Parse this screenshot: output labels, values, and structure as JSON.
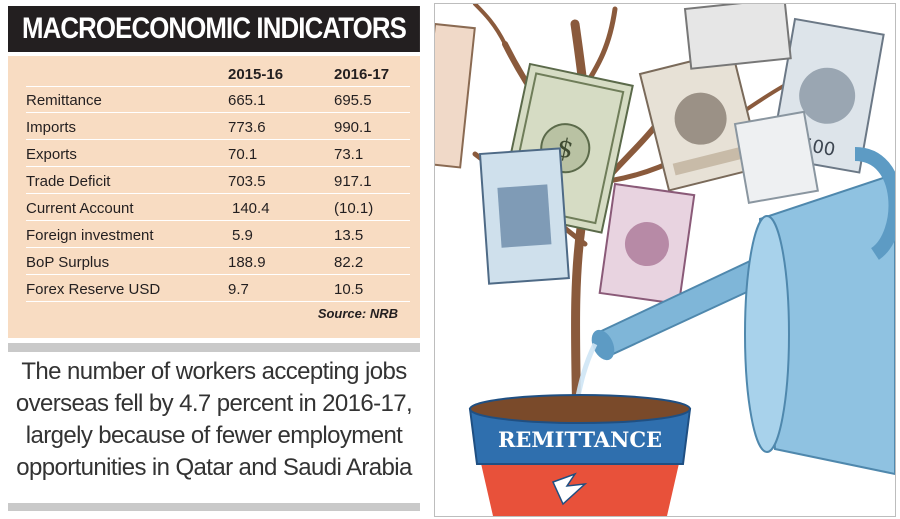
{
  "table": {
    "title": "MACROECONOMIC INDICATORS",
    "col_header_1": "2015-16",
    "col_header_2": "2016-17",
    "rows": [
      {
        "label": "Remittance",
        "v1": "665.1",
        "v2": "695.5"
      },
      {
        "label": "Imports",
        "v1": "773.6",
        "v2": "990.1"
      },
      {
        "label": "Exports",
        "v1": "70.1",
        "v2": "73.1"
      },
      {
        "label": "Trade Deficit",
        "v1": "703.5",
        "v2": "917.1"
      },
      {
        "label": "Current Account",
        "v1": "140.4",
        "v2": "(10.1)"
      },
      {
        "label": "Foreign investment",
        "v1": "5.9",
        "v2": "13.5"
      },
      {
        "label": "BoP Surplus",
        "v1": "188.9",
        "v2": "82.2"
      },
      {
        "label": "Forex Reserve USD",
        "v1": "9.7",
        "v2": "10.5"
      }
    ],
    "source": "Source: NRB"
  },
  "caption": "The number of workers accepting jobs overseas fell by 4.7 percent in 2016-17, largely because of fewer employment opportunities in Qatar and Saudi Arabia",
  "illustration": {
    "pot_label": "REMITTANCE",
    "banknote_labels": [
      "$",
      "500"
    ],
    "colors": {
      "pot": "#e8513a",
      "pot_rim": "#2f6fae",
      "can": "#7fb6d8",
      "branch": "#8a5a3c",
      "water": "#cfe6f5"
    }
  }
}
